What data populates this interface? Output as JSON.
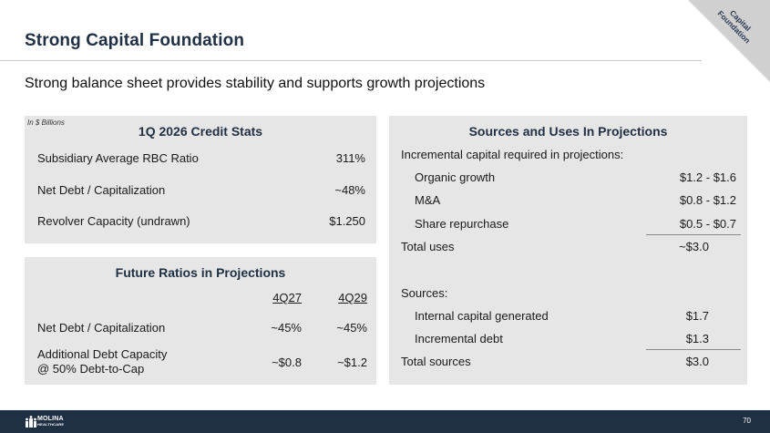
{
  "slide": {
    "title": "Strong Capital Foundation",
    "subtitle": "Strong balance sheet provides stability and supports growth projections",
    "corner_tag": "Capital Foundation",
    "page_number": "70",
    "logo_text_top": "MOLINA",
    "logo_text_bottom": "HEALTHCARE"
  },
  "credit_stats": {
    "note": "In $ Billions",
    "title": "1Q 2026 Credit Stats",
    "rows": [
      {
        "label": "Subsidiary Average RBC Ratio",
        "value": "311%"
      },
      {
        "label": "Net Debt / Capitalization",
        "value": "~48%"
      },
      {
        "label": "Revolver Capacity (undrawn)",
        "value": "$1.250"
      }
    ]
  },
  "future_ratios": {
    "title": "Future Ratios in Projections",
    "col1": "4Q27",
    "col2": "4Q29",
    "rows": [
      {
        "label": "Net Debt / Capitalization",
        "v1": "~45%",
        "v2": "~45%"
      },
      {
        "label_line1": "Additional Debt Capacity",
        "label_line2": "@ 50% Debt-to-Cap",
        "v1": "~$0.8",
        "v2": "~$1.2"
      }
    ]
  },
  "sources_uses": {
    "title": "Sources and Uses In Projections",
    "uses_header": "Incremental capital required in projections:",
    "uses": [
      {
        "label": "Organic growth",
        "value": "$1.2 - $1.6"
      },
      {
        "label": "M&A",
        "value": "$0.8 - $1.2"
      },
      {
        "label": "Share repurchase",
        "value": "$0.5 - $0.7"
      }
    ],
    "uses_total": {
      "label": "Total uses",
      "value": "~$3.0"
    },
    "sources_header": "Sources:",
    "sources": [
      {
        "label": "Internal capital generated",
        "value": "$1.7"
      },
      {
        "label": "Incremental debt",
        "value": "$1.3"
      }
    ],
    "sources_total": {
      "label": "Total sources",
      "value": "$3.0"
    }
  }
}
